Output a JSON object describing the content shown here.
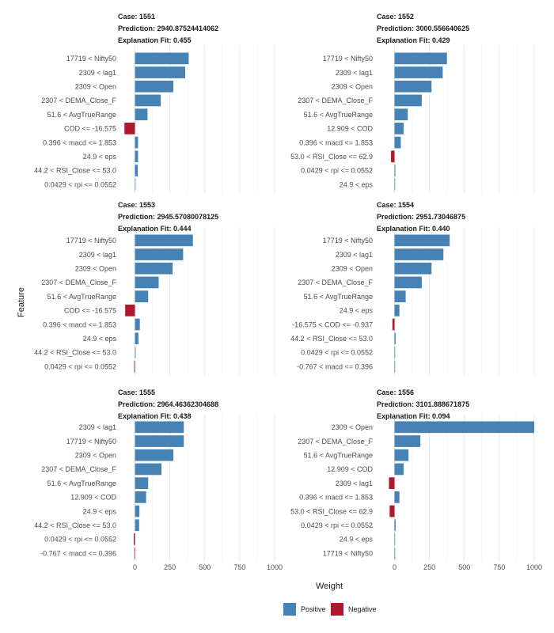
{
  "chart_data": {
    "type": "bar",
    "orientation": "horizontal",
    "xlabel": "Weight",
    "ylabel": "Feature",
    "xlim": [
      -60,
      1000
    ],
    "xticks": [
      0,
      250,
      500,
      750,
      1000
    ],
    "grid": true,
    "legend": {
      "position": "bottom",
      "entries": [
        {
          "label": "Positive",
          "color": "#4682B4"
        },
        {
          "label": "Negative",
          "color": "#B2182B"
        }
      ]
    },
    "facets": [
      {
        "case": "Case: 1551",
        "prediction": "Prediction: 2940.87524414062",
        "fit": "Explanation Fit: 0.455",
        "bars": [
          {
            "feature": "17719 < Nifty50",
            "value": 385
          },
          {
            "feature": "2309 < lag1",
            "value": 360
          },
          {
            "feature": "2309 < Open",
            "value": 275
          },
          {
            "feature": "2307 < DEMA_Close_F",
            "value": 185
          },
          {
            "feature": "51.6 < AvgTrueRange",
            "value": 90
          },
          {
            "feature": "COD <= -16.575",
            "value": -75
          },
          {
            "feature": "0.396 < macd <= 1.853",
            "value": 22
          },
          {
            "feature": "24.9 < eps",
            "value": 22
          },
          {
            "feature": "44.2 < RSI_Close <= 53.0",
            "value": 20
          },
          {
            "feature": "0.0429 < rpi <= 0.0552",
            "value": 3
          }
        ]
      },
      {
        "case": "Case: 1552",
        "prediction": "Prediction: 3000.556640625",
        "fit": "Explanation Fit: 0.429",
        "bars": [
          {
            "feature": "17719 < Nifty50",
            "value": 375
          },
          {
            "feature": "2309 < lag1",
            "value": 345
          },
          {
            "feature": "2309 < Open",
            "value": 265
          },
          {
            "feature": "2307 < DEMA_Close_F",
            "value": 195
          },
          {
            "feature": "51.6 < AvgTrueRange",
            "value": 95
          },
          {
            "feature": "12.909 < COD",
            "value": 65
          },
          {
            "feature": "0.396 < macd <= 1.853",
            "value": 45
          },
          {
            "feature": "53.0 < RSI_Close <= 62.9",
            "value": -25
          },
          {
            "feature": "0.0429 < rpi <= 0.0552",
            "value": 6
          },
          {
            "feature": "24.9 < eps",
            "value": 3
          }
        ]
      },
      {
        "case": "Case: 1553",
        "prediction": "Prediction: 2945.57080078125",
        "fit": "Explanation Fit: 0.444",
        "bars": [
          {
            "feature": "17719 < Nifty50",
            "value": 415
          },
          {
            "feature": "2309 < lag1",
            "value": 345
          },
          {
            "feature": "2309 < Open",
            "value": 270
          },
          {
            "feature": "2307 < DEMA_Close_F",
            "value": 170
          },
          {
            "feature": "51.6 < AvgTrueRange",
            "value": 95
          },
          {
            "feature": "COD <= -16.575",
            "value": -70
          },
          {
            "feature": "0.396 < macd <= 1.853",
            "value": 35
          },
          {
            "feature": "24.9 < eps",
            "value": 25
          },
          {
            "feature": "44.2 < RSI_Close <= 53.0",
            "value": 5
          },
          {
            "feature": "0.0429 < rpi <= 0.0552",
            "value": -5
          }
        ]
      },
      {
        "case": "Case: 1554",
        "prediction": "Prediction: 2951.73046875",
        "fit": "Explanation Fit: 0.440",
        "bars": [
          {
            "feature": "17719 < Nifty50",
            "value": 395
          },
          {
            "feature": "2309 < lag1",
            "value": 350
          },
          {
            "feature": "2309 < Open",
            "value": 265
          },
          {
            "feature": "2307 < DEMA_Close_F",
            "value": 195
          },
          {
            "feature": "51.6 < AvgTrueRange",
            "value": 80
          },
          {
            "feature": "24.9 < eps",
            "value": 35
          },
          {
            "feature": "-16.575 < COD <= -0.937",
            "value": -15
          },
          {
            "feature": "44.2 < RSI_Close <= 53.0",
            "value": 8
          },
          {
            "feature": "0.0429 < rpi <= 0.0552",
            "value": 3
          },
          {
            "feature": "-0.767 < macd <= 0.396",
            "value": 2
          }
        ]
      },
      {
        "case": "Case: 1555",
        "prediction": "Prediction: 2964.46362304688",
        "fit": "Explanation Fit: 0.438",
        "bars": [
          {
            "feature": "2309 < lag1",
            "value": 350
          },
          {
            "feature": "17719 < Nifty50",
            "value": 350
          },
          {
            "feature": "2309 < Open",
            "value": 275
          },
          {
            "feature": "2307 < DEMA_Close_F",
            "value": 190
          },
          {
            "feature": "51.6 < AvgTrueRange",
            "value": 95
          },
          {
            "feature": "12.909 < COD",
            "value": 80
          },
          {
            "feature": "24.9 < eps",
            "value": 32
          },
          {
            "feature": "44.2 < RSI_Close <= 53.0",
            "value": 30
          },
          {
            "feature": "0.0429 < rpi <= 0.0552",
            "value": -8
          },
          {
            "feature": "-0.767 < macd <= 0.396",
            "value": -4
          }
        ]
      },
      {
        "case": "Case: 1556",
        "prediction": "Prediction: 3101.888671875",
        "fit": "Explanation Fit: 0.094",
        "bars": [
          {
            "feature": "2309 < Open",
            "value": 1000
          },
          {
            "feature": "2307 < DEMA_Close_F",
            "value": 185
          },
          {
            "feature": "51.6 < AvgTrueRange",
            "value": 100
          },
          {
            "feature": "12.909 < COD",
            "value": 65
          },
          {
            "feature": "2309 < lag1",
            "value": -40
          },
          {
            "feature": "0.396 < macd <= 1.853",
            "value": 35
          },
          {
            "feature": "53.0 < RSI_Close <= 62.9",
            "value": -35
          },
          {
            "feature": "0.0429 < rpi <= 0.0552",
            "value": 8
          },
          {
            "feature": "24.9 < eps",
            "value": 0
          },
          {
            "feature": "17719 < Nifty50",
            "value": 0
          }
        ]
      }
    ]
  }
}
